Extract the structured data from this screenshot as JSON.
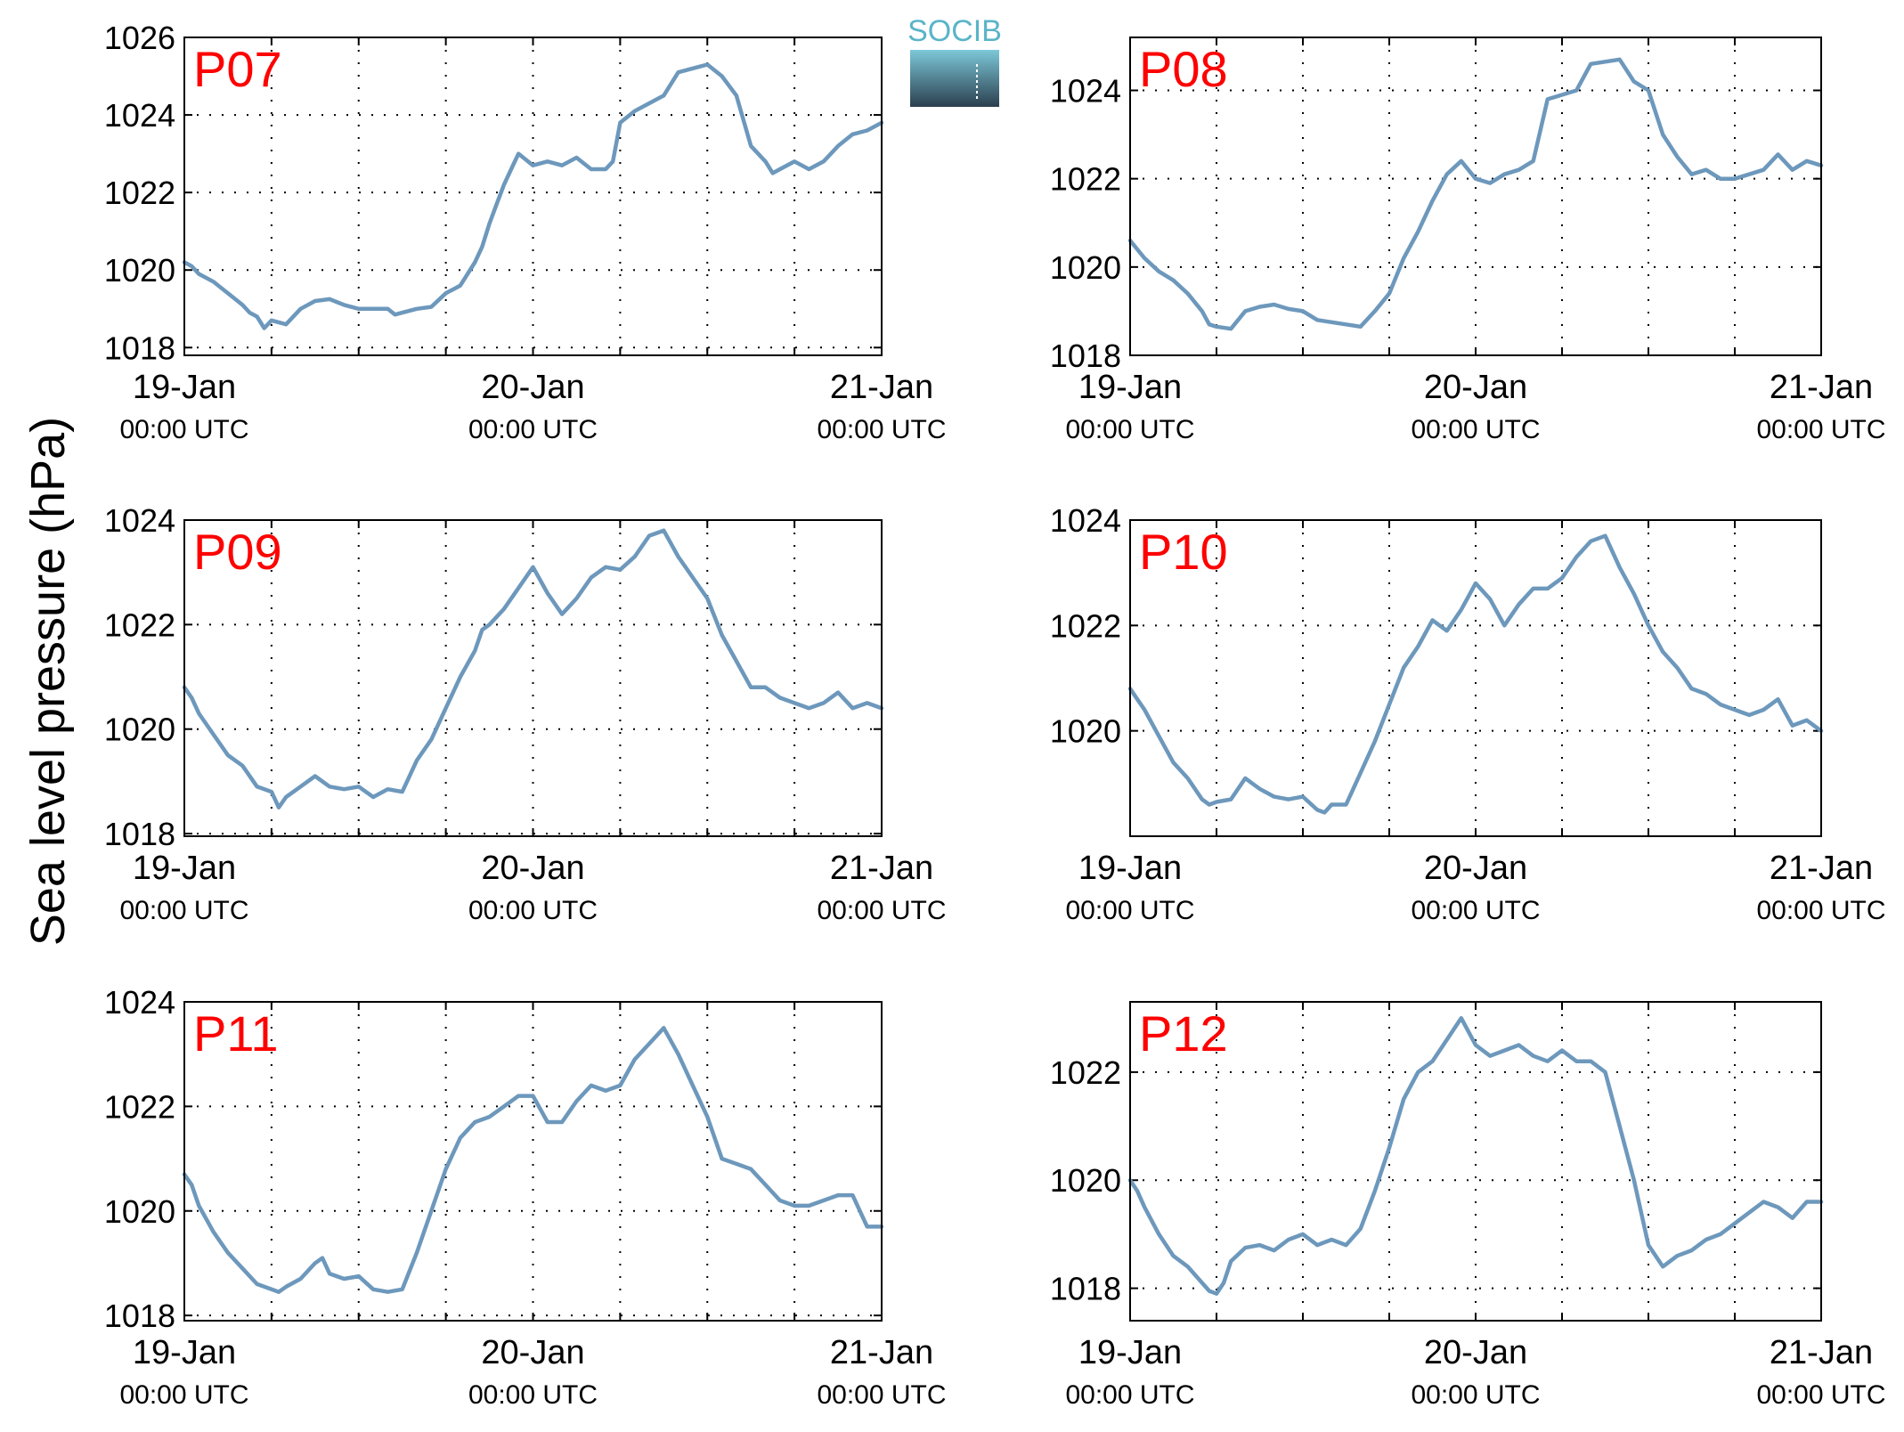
{
  "figure": {
    "ylabel": "Sea level pressure (hPa)",
    "logo_text": "SOCIB"
  },
  "colors": {
    "line": "#6d98bc",
    "panel_label": "#ff0000",
    "logo_top": "#7cc8d8",
    "logo_bottom": "#2b3f4e",
    "logo_text": "#5ab4c8"
  },
  "chart_data": [
    {
      "type": "line",
      "label": "P07",
      "x_ticks": [
        {
          "date": "19-Jan",
          "time": "00:00 UTC"
        },
        {
          "date": "20-Jan",
          "time": "00:00 UTC"
        },
        {
          "date": "21-Jan",
          "time": "00:00 UTC"
        }
      ],
      "xlim_hours": [
        0,
        48
      ],
      "x_grid_every_hours": 6,
      "ylim": [
        1017.8,
        1026.0
      ],
      "yticks": [
        1018,
        1020,
        1022,
        1024,
        1026
      ],
      "grid": true,
      "series": [
        {
          "x_hours": [
            0,
            0.5,
            1,
            2,
            3,
            4,
            4.5,
            5,
            5.5,
            6,
            7,
            8,
            9,
            10,
            11,
            12,
            13,
            14,
            14.5,
            15,
            16,
            17,
            18,
            18.5,
            19,
            20,
            20.5,
            21,
            21.5,
            22,
            22.5,
            23,
            24,
            25,
            26,
            27,
            28,
            29,
            29.5,
            30,
            31,
            32,
            33,
            34,
            35,
            36,
            37,
            38,
            39,
            40,
            40.5,
            41,
            42,
            43,
            44,
            45,
            46,
            47,
            48
          ],
          "values": [
            1020.2,
            1020.1,
            1019.9,
            1019.7,
            1019.4,
            1019.1,
            1018.9,
            1018.8,
            1018.5,
            1018.7,
            1018.6,
            1019.0,
            1019.2,
            1019.25,
            1019.1,
            1019.0,
            1019.0,
            1019.0,
            1018.85,
            1018.9,
            1019.0,
            1019.05,
            1019.4,
            1019.5,
            1019.6,
            1020.2,
            1020.6,
            1021.2,
            1021.7,
            1022.2,
            1022.6,
            1023.0,
            1022.7,
            1022.8,
            1022.7,
            1022.9,
            1022.6,
            1022.6,
            1022.8,
            1023.8,
            1024.1,
            1024.3,
            1024.5,
            1025.1,
            1025.2,
            1025.3,
            1025.0,
            1024.5,
            1023.2,
            1022.8,
            1022.5,
            1022.6,
            1022.8,
            1022.6,
            1022.8,
            1023.2,
            1023.5,
            1023.6,
            1023.8
          ]
        }
      ]
    },
    {
      "type": "line",
      "label": "P08",
      "x_ticks": [
        {
          "date": "19-Jan",
          "time": "00:00 UTC"
        },
        {
          "date": "20-Jan",
          "time": "00:00 UTC"
        },
        {
          "date": "21-Jan",
          "time": "00:00 UTC"
        }
      ],
      "xlim_hours": [
        0,
        48
      ],
      "x_grid_every_hours": 6,
      "ylim": [
        1018.0,
        1025.2
      ],
      "yticks": [
        1018,
        1020,
        1022,
        1024
      ],
      "grid": true,
      "series": [
        {
          "x_hours": [
            0,
            0.5,
            1,
            2,
            3,
            4,
            5,
            5.5,
            6,
            7,
            8,
            9,
            10,
            11,
            12,
            13,
            14,
            15,
            16,
            17,
            18,
            18.5,
            19,
            20,
            21,
            22,
            23,
            24,
            25,
            26,
            27,
            28,
            29,
            30,
            31,
            32,
            33,
            34,
            35,
            36,
            37,
            38,
            39,
            40,
            41,
            42,
            43,
            44,
            45,
            46,
            47,
            48
          ],
          "values": [
            1020.6,
            1020.4,
            1020.2,
            1019.9,
            1019.7,
            1019.4,
            1019.0,
            1018.7,
            1018.65,
            1018.6,
            1019.0,
            1019.1,
            1019.15,
            1019.05,
            1019.0,
            1018.8,
            1018.75,
            1018.7,
            1018.65,
            1019.0,
            1019.4,
            1019.8,
            1020.2,
            1020.8,
            1021.5,
            1022.1,
            1022.4,
            1022.0,
            1021.9,
            1022.1,
            1022.2,
            1022.4,
            1023.8,
            1023.9,
            1024.0,
            1024.6,
            1024.65,
            1024.7,
            1024.2,
            1024.0,
            1023.0,
            1022.5,
            1022.1,
            1022.2,
            1022.0,
            1022.0,
            1022.1,
            1022.2,
            1022.55,
            1022.2,
            1022.4,
            1022.3
          ]
        }
      ]
    },
    {
      "type": "line",
      "label": "P09",
      "x_ticks": [
        {
          "date": "19-Jan",
          "time": "00:00 UTC"
        },
        {
          "date": "20-Jan",
          "time": "00:00 UTC"
        },
        {
          "date": "21-Jan",
          "time": "00:00 UTC"
        }
      ],
      "xlim_hours": [
        0,
        48
      ],
      "x_grid_every_hours": 6,
      "ylim": [
        1017.95,
        1024.0
      ],
      "yticks": [
        1018,
        1020,
        1022,
        1024
      ],
      "grid": true,
      "series": [
        {
          "x_hours": [
            0,
            0.5,
            1,
            2,
            3,
            4,
            5,
            6,
            6.5,
            7,
            8,
            9,
            10,
            11,
            12,
            13,
            14,
            15,
            16,
            17,
            18,
            19,
            20,
            20.5,
            21,
            22,
            23,
            24,
            25,
            26,
            27,
            28,
            29,
            30,
            31,
            32,
            33,
            34,
            35,
            36,
            37,
            38,
            39,
            40,
            41,
            42,
            43,
            44,
            45,
            46,
            47,
            48
          ],
          "values": [
            1020.8,
            1020.6,
            1020.3,
            1019.9,
            1019.5,
            1019.3,
            1018.9,
            1018.8,
            1018.5,
            1018.7,
            1018.9,
            1019.1,
            1018.9,
            1018.85,
            1018.9,
            1018.7,
            1018.85,
            1018.8,
            1019.4,
            1019.8,
            1020.4,
            1021.0,
            1021.5,
            1021.9,
            1022.0,
            1022.3,
            1022.7,
            1023.1,
            1022.6,
            1022.2,
            1022.5,
            1022.9,
            1023.1,
            1023.05,
            1023.3,
            1023.7,
            1023.8,
            1023.3,
            1022.9,
            1022.5,
            1021.8,
            1021.3,
            1020.8,
            1020.8,
            1020.6,
            1020.5,
            1020.4,
            1020.5,
            1020.7,
            1020.4,
            1020.5,
            1020.4
          ]
        }
      ]
    },
    {
      "type": "line",
      "label": "P10",
      "x_ticks": [
        {
          "date": "19-Jan",
          "time": "00:00 UTC"
        },
        {
          "date": "20-Jan",
          "time": "00:00 UTC"
        },
        {
          "date": "21-Jan",
          "time": "00:00 UTC"
        }
      ],
      "xlim_hours": [
        0,
        48
      ],
      "x_grid_every_hours": 6,
      "ylim": [
        1018.0,
        1024.0
      ],
      "yticks": [
        1020,
        1022,
        1024
      ],
      "grid": true,
      "series": [
        {
          "x_hours": [
            0,
            0.5,
            1,
            2,
            3,
            4,
            5,
            5.5,
            6,
            7,
            8,
            9,
            10,
            11,
            12,
            13,
            13.5,
            14,
            15,
            16,
            17,
            18,
            19,
            20,
            21,
            22,
            23,
            24,
            25,
            26,
            27,
            28,
            29,
            30,
            31,
            32,
            33,
            34,
            35,
            36,
            37,
            38,
            39,
            40,
            41,
            42,
            43,
            44,
            45,
            46,
            47,
            48
          ],
          "values": [
            1020.8,
            1020.6,
            1020.4,
            1019.9,
            1019.4,
            1019.1,
            1018.7,
            1018.6,
            1018.65,
            1018.7,
            1019.1,
            1018.9,
            1018.75,
            1018.7,
            1018.75,
            1018.5,
            1018.45,
            1018.6,
            1018.6,
            1019.2,
            1019.8,
            1020.5,
            1021.2,
            1021.6,
            1022.1,
            1021.9,
            1022.3,
            1022.8,
            1022.5,
            1022.0,
            1022.4,
            1022.7,
            1022.7,
            1022.9,
            1023.3,
            1023.6,
            1023.7,
            1023.1,
            1022.6,
            1022.0,
            1021.5,
            1021.2,
            1020.8,
            1020.7,
            1020.5,
            1020.4,
            1020.3,
            1020.4,
            1020.6,
            1020.1,
            1020.2,
            1020.0
          ]
        }
      ]
    },
    {
      "type": "line",
      "label": "P11",
      "x_ticks": [
        {
          "date": "19-Jan",
          "time": "00:00 UTC"
        },
        {
          "date": "20-Jan",
          "time": "00:00 UTC"
        },
        {
          "date": "21-Jan",
          "time": "00:00 UTC"
        }
      ],
      "xlim_hours": [
        0,
        48
      ],
      "x_grid_every_hours": 6,
      "ylim": [
        1017.9,
        1024.0
      ],
      "yticks": [
        1018,
        1020,
        1022,
        1024
      ],
      "grid": true,
      "series": [
        {
          "x_hours": [
            0,
            0.5,
            1,
            2,
            3,
            4,
            5,
            6,
            6.5,
            7,
            8,
            9,
            9.5,
            10,
            11,
            12,
            13,
            14,
            15,
            16,
            17,
            18,
            19,
            20,
            21,
            22,
            23,
            24,
            25,
            26,
            27,
            28,
            29,
            30,
            31,
            32,
            33,
            34,
            35,
            36,
            37,
            38,
            39,
            40,
            41,
            42,
            43,
            44,
            45,
            46,
            47,
            48
          ],
          "values": [
            1020.7,
            1020.5,
            1020.1,
            1019.6,
            1019.2,
            1018.9,
            1018.6,
            1018.5,
            1018.45,
            1018.55,
            1018.7,
            1019.0,
            1019.1,
            1018.8,
            1018.7,
            1018.75,
            1018.5,
            1018.45,
            1018.5,
            1019.2,
            1020.0,
            1020.8,
            1021.4,
            1021.7,
            1021.8,
            1022.0,
            1022.2,
            1022.2,
            1021.7,
            1021.7,
            1022.1,
            1022.4,
            1022.3,
            1022.4,
            1022.9,
            1023.2,
            1023.5,
            1023.0,
            1022.4,
            1021.8,
            1021.0,
            1020.9,
            1020.8,
            1020.5,
            1020.2,
            1020.1,
            1020.1,
            1020.2,
            1020.3,
            1020.3,
            1019.7,
            1019.7
          ]
        }
      ]
    },
    {
      "type": "line",
      "label": "P12",
      "x_ticks": [
        {
          "date": "19-Jan",
          "time": "00:00 UTC"
        },
        {
          "date": "20-Jan",
          "time": "00:00 UTC"
        },
        {
          "date": "21-Jan",
          "time": "00:00 UTC"
        }
      ],
      "xlim_hours": [
        0,
        48
      ],
      "x_grid_every_hours": 6,
      "ylim": [
        1017.4,
        1023.3
      ],
      "yticks": [
        1018,
        1020,
        1022
      ],
      "grid": true,
      "series": [
        {
          "x_hours": [
            0,
            0.5,
            1,
            2,
            3,
            4,
            5,
            5.5,
            6,
            6.5,
            7,
            8,
            9,
            10,
            11,
            12,
            13,
            14,
            15,
            16,
            17,
            18,
            19,
            20,
            21,
            22,
            23,
            24,
            25,
            26,
            27,
            28,
            29,
            30,
            31,
            32,
            33,
            34,
            35,
            36,
            37,
            38,
            39,
            40,
            41,
            42,
            43,
            44,
            45,
            46,
            47,
            48
          ],
          "values": [
            1020.0,
            1019.8,
            1019.5,
            1019.0,
            1018.6,
            1018.4,
            1018.1,
            1017.95,
            1017.9,
            1018.1,
            1018.5,
            1018.75,
            1018.8,
            1018.7,
            1018.9,
            1019.0,
            1018.8,
            1018.9,
            1018.8,
            1019.1,
            1019.8,
            1020.6,
            1021.5,
            1022.0,
            1022.2,
            1022.6,
            1023.0,
            1022.5,
            1022.3,
            1022.4,
            1022.5,
            1022.3,
            1022.2,
            1022.4,
            1022.2,
            1022.2,
            1022.0,
            1021.0,
            1020.0,
            1018.8,
            1018.4,
            1018.6,
            1018.7,
            1018.9,
            1019.0,
            1019.2,
            1019.4,
            1019.6,
            1019.5,
            1019.3,
            1019.6,
            1019.6
          ]
        }
      ]
    }
  ]
}
